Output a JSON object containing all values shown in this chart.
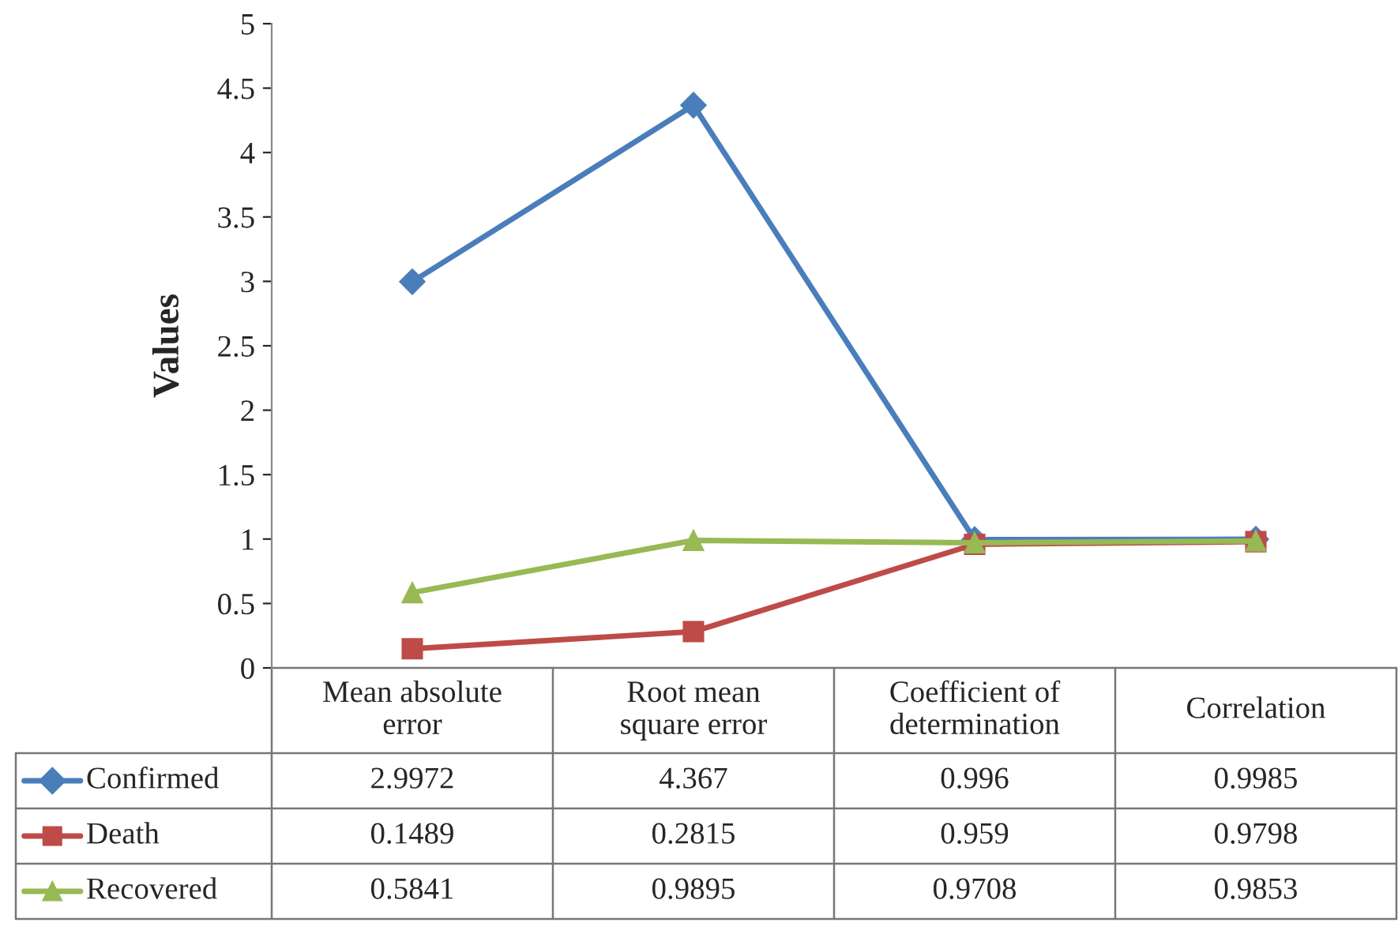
{
  "chart_data": {
    "type": "line",
    "ylabel": "Values",
    "categories": [
      "Mean absolute error",
      "Root mean square error",
      "Coefficient of determination",
      "Correlation"
    ],
    "series": [
      {
        "name": "Confirmed",
        "color": "#4a7ebb",
        "marker": "diamond",
        "values": [
          2.9972,
          4.367,
          0.996,
          0.9985
        ]
      },
      {
        "name": "Death",
        "color": "#be4b48",
        "marker": "square",
        "values": [
          0.1489,
          0.2815,
          0.959,
          0.9798
        ]
      },
      {
        "name": "Recovered",
        "color": "#98b954",
        "marker": "triangle",
        "values": [
          0.5841,
          0.9895,
          0.9708,
          0.9853
        ]
      }
    ],
    "ylim": [
      0,
      5
    ],
    "yticks": [
      0,
      0.5,
      1,
      1.5,
      2,
      2.5,
      3,
      3.5,
      4,
      4.5,
      5
    ],
    "grid": false,
    "legend": "bottom",
    "data_labels": true,
    "line_style": "solid"
  }
}
